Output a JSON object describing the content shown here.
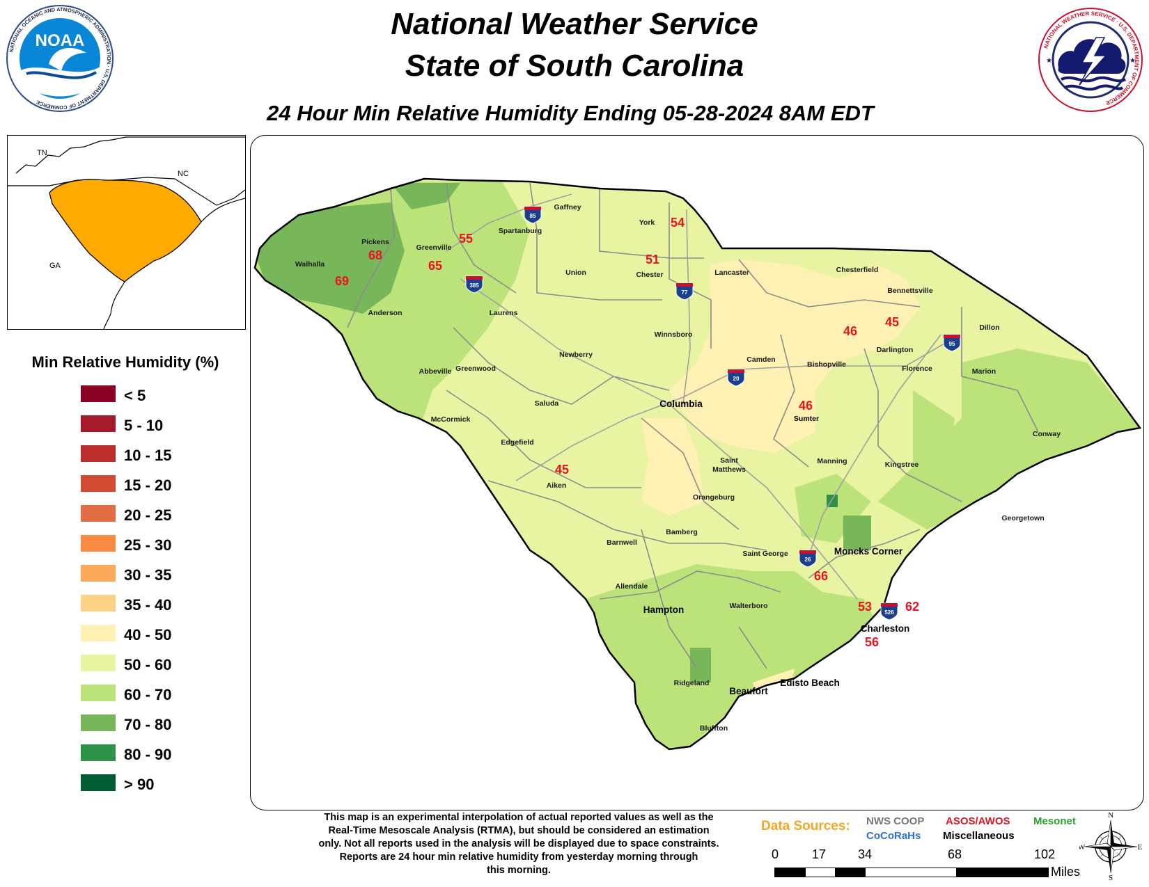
{
  "title": {
    "line1": "National Weather Service",
    "line2": "State of South Carolina",
    "subtitle": "24 Hour Min Relative Humidity Ending 05-28-2024 8AM EDT"
  },
  "logos": {
    "noaa": {
      "text": "NOAA",
      "ring_text": "NATIONAL OCEANIC AND ATMOSPHERIC ADMINISTRATION · U.S. DEPARTMENT OF COMMERCE"
    },
    "nws": {
      "ring_text": "NATIONAL WEATHER SERVICE · U.S. DEPARTMENT OF COMMERCE"
    }
  },
  "inset": {
    "labels": [
      "TN",
      "NC",
      "GA"
    ],
    "highlight_color": "#FFAA00"
  },
  "legend": {
    "title": "Min Relative Humidity (%)",
    "items": [
      {
        "label": "< 5",
        "color": "#8B0025"
      },
      {
        "label": "5 - 10",
        "color": "#A51A2A"
      },
      {
        "label": "10 - 15",
        "color": "#BC2E2C"
      },
      {
        "label": "15 - 20",
        "color": "#D44B33"
      },
      {
        "label": "20 - 25",
        "color": "#E06D43"
      },
      {
        "label": "25 - 30",
        "color": "#F98B42"
      },
      {
        "label": "30 - 35",
        "color": "#FBA95A"
      },
      {
        "label": "35 - 40",
        "color": "#FCD385"
      },
      {
        "label": "40 - 50",
        "color": "#FFF1B3"
      },
      {
        "label": "50 - 60",
        "color": "#E9F4A2"
      },
      {
        "label": "60 - 70",
        "color": "#BCE27A"
      },
      {
        "label": "70 - 80",
        "color": "#78B65A"
      },
      {
        "label": "80 - 90",
        "color": "#2E9148"
      },
      {
        "label": "> 90",
        "color": "#005C33"
      }
    ]
  },
  "cities": [
    {
      "name": "Gaffney"
    },
    {
      "name": "Spartanburg"
    },
    {
      "name": "York"
    },
    {
      "name": "Pickens"
    },
    {
      "name": "Greenville"
    },
    {
      "name": "Walhalla"
    },
    {
      "name": "Union"
    },
    {
      "name": "Chester"
    },
    {
      "name": "Lancaster"
    },
    {
      "name": "Chesterfield"
    },
    {
      "name": "Bennettsville"
    },
    {
      "name": "Anderson"
    },
    {
      "name": "Laurens"
    },
    {
      "name": "Winnsboro"
    },
    {
      "name": "Dillon"
    },
    {
      "name": "Newberry"
    },
    {
      "name": "Camden"
    },
    {
      "name": "Bishopville"
    },
    {
      "name": "Darlington"
    },
    {
      "name": "Florence"
    },
    {
      "name": "Abbeville"
    },
    {
      "name": "Greenwood"
    },
    {
      "name": "Marion"
    },
    {
      "name": "Saluda"
    },
    {
      "name": "Columbia"
    },
    {
      "name": "Sumter"
    },
    {
      "name": "McCormick"
    },
    {
      "name": "Conway"
    },
    {
      "name": "Edgefield"
    },
    {
      "name": "Saint"
    },
    {
      "name": "Matthews"
    },
    {
      "name": "Manning"
    },
    {
      "name": "Kingstree"
    },
    {
      "name": "Aiken"
    },
    {
      "name": "Orangeburg"
    },
    {
      "name": "Georgetown"
    },
    {
      "name": "Barnwell"
    },
    {
      "name": "Bamberg"
    },
    {
      "name": "Moncks Corner"
    },
    {
      "name": "Saint George"
    },
    {
      "name": "Allendale"
    },
    {
      "name": "Hampton"
    },
    {
      "name": "Walterboro"
    },
    {
      "name": "Charleston"
    },
    {
      "name": "Ridgeland"
    },
    {
      "name": "Beaufort"
    },
    {
      "name": "Edisto Beach"
    },
    {
      "name": "Bluffton"
    }
  ],
  "observations": [
    "54",
    "55",
    "68",
    "65",
    "69",
    "51",
    "46",
    "45",
    "46",
    "45",
    "66",
    "53",
    "62",
    "56"
  ],
  "interstates": [
    "85",
    "385",
    "77",
    "20",
    "95",
    "26",
    "526"
  ],
  "disclaimer": [
    "This map is an experimental interpolation of actual reported values as well as the",
    "Real-Time Mesoscale Analysis (RTMA), but should be considered an estimation",
    "only. Not all reports used in the analysis will be displayed due to space constraints.",
    "Reports are 24 hour min relative humidity from yesterday morning through",
    "this morning."
  ],
  "data_sources": {
    "label": "Data Sources:",
    "nws_coop": "NWS COOP",
    "cocorahs": "CoCoRaHs",
    "asos": "ASOS/AWOS",
    "misc": "Miscellaneous",
    "mesonet": "Mesonet"
  },
  "scale": {
    "ticks": [
      "0",
      "17",
      "34",
      "68",
      "102"
    ],
    "unit": "Miles"
  },
  "compass": {
    "n": "N",
    "e": "E",
    "s": "S",
    "w": "W"
  }
}
